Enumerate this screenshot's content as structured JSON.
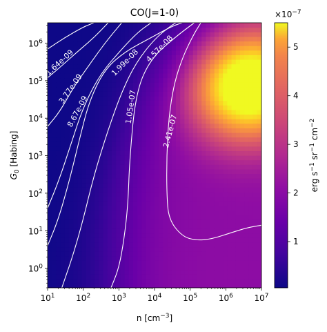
{
  "chart_data": {
    "type": "heatmap",
    "title": "CO(J=1-0)",
    "xlabel": "n [cm$^{-3}$]",
    "ylabel": "$G_0$ [Habing]",
    "x_scale": "log",
    "y_scale": "log",
    "xlim": [
      10,
      10000000
    ],
    "ylim": [
      0.3,
      3500000
    ],
    "x_ticks": [
      {
        "value": 10,
        "base": "10",
        "exp": "1"
      },
      {
        "value": 100,
        "base": "10",
        "exp": "2"
      },
      {
        "value": 1000,
        "base": "10",
        "exp": "3"
      },
      {
        "value": 10000,
        "base": "10",
        "exp": "4"
      },
      {
        "value": 100000,
        "base": "10",
        "exp": "5"
      },
      {
        "value": 1000000,
        "base": "10",
        "exp": "6"
      },
      {
        "value": 10000000,
        "base": "10",
        "exp": "7"
      }
    ],
    "y_ticks": [
      {
        "value": 1,
        "base": "10",
        "exp": "0"
      },
      {
        "value": 10,
        "base": "10",
        "exp": "1"
      },
      {
        "value": 100,
        "base": "10",
        "exp": "2"
      },
      {
        "value": 1000,
        "base": "10",
        "exp": "3"
      },
      {
        "value": 10000,
        "base": "10",
        "exp": "4"
      },
      {
        "value": 100000,
        "base": "10",
        "exp": "5"
      },
      {
        "value": 1000000,
        "base": "10",
        "exp": "6"
      }
    ],
    "colormap": "plasma",
    "colorbar": {
      "label": "erg s$^{-1}$ sr$^{-1}$ cm$^{-2}$",
      "range": [
        0.05,
        5.5
      ],
      "ticks": [
        "1",
        "2",
        "3",
        "4",
        "5"
      ],
      "multiplier": "×10",
      "multiplier_exp": "−7"
    },
    "contours": [
      {
        "label": "1.64e-09",
        "points": [
          [
            10,
            700000
          ],
          [
            30,
            1400000
          ],
          [
            100,
            2700000
          ],
          [
            200,
            3500000
          ]
        ]
      },
      {
        "label": "3.77e-09",
        "points": [
          [
            10,
            120000
          ],
          [
            25,
            250000
          ],
          [
            70,
            600000
          ],
          [
            200,
            1400000
          ],
          [
            500,
            3500000
          ]
        ]
      },
      {
        "label": "8.67e-09",
        "points": [
          [
            10,
            6000
          ],
          [
            22,
            15000
          ],
          [
            50,
            60000
          ],
          [
            120,
            200000
          ],
          [
            400,
            1000000
          ],
          [
            1200,
            3500000
          ]
        ]
      },
      {
        "label": "1.99e-08",
        "points": [
          [
            10,
            40
          ],
          [
            20,
            200
          ],
          [
            45,
            2000
          ],
          [
            100,
            20000
          ],
          [
            300,
            150000
          ],
          [
            1200,
            700000
          ],
          [
            3500,
            2000000
          ],
          [
            8000,
            3500000
          ]
        ]
      },
      {
        "label": "4.57e-08",
        "points": [
          [
            10,
            4
          ],
          [
            20,
            20
          ],
          [
            40,
            200
          ],
          [
            80,
            3000
          ],
          [
            150,
            30000
          ],
          [
            400,
            200000
          ],
          [
            1500,
            600000
          ],
          [
            8000,
            1400000
          ],
          [
            30000,
            2800000
          ],
          [
            60000,
            3500000
          ]
        ]
      },
      {
        "label": "1.05e-07",
        "points": [
          [
            25,
            0.3
          ],
          [
            50,
            2
          ],
          [
            100,
            20
          ],
          [
            200,
            300
          ],
          [
            500,
            5000
          ],
          [
            1200,
            50000
          ],
          [
            3000,
            300000
          ],
          [
            10000,
            1300000
          ],
          [
            30000,
            3000000
          ],
          [
            40000,
            3500000
          ]
        ]
      },
      {
        "label": "1.05e-07",
        "points": [
          [
            600,
            0.3
          ],
          [
            1000,
            1
          ],
          [
            1400,
            6
          ],
          [
            1800,
            50
          ],
          [
            2000,
            800
          ],
          [
            3000,
            50000
          ],
          [
            8000,
            400000
          ],
          [
            40000,
            1500000
          ],
          [
            130000,
            3500000
          ]
        ]
      },
      {
        "label": "2.41e-07",
        "points": [
          [
            200000,
            3500000
          ],
          [
            120000,
            1600000
          ],
          [
            60000,
            400000
          ],
          [
            35000,
            80000
          ],
          [
            25000,
            10000
          ],
          [
            22000,
            1000
          ],
          [
            22000,
            100
          ],
          [
            25000,
            20
          ],
          [
            60000,
            7
          ],
          [
            150000,
            5.5
          ],
          [
            400000,
            6
          ],
          [
            1500000,
            9
          ],
          [
            4000000,
            12
          ],
          [
            10000000,
            14
          ]
        ]
      }
    ]
  }
}
